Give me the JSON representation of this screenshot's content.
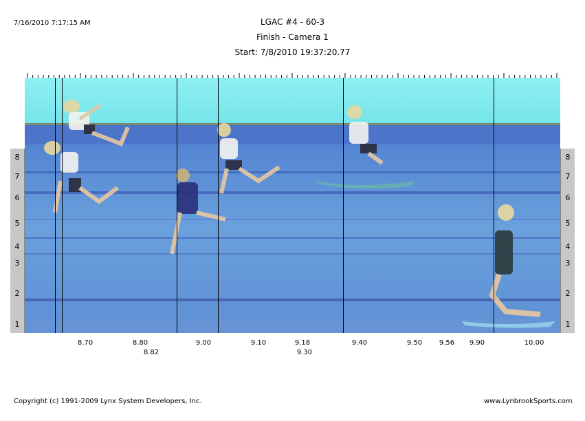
{
  "header": {
    "timestamp": "7/16/2010 7:17:15 AM",
    "title": "LGAC #4 - 60-3",
    "subtitle": "Finish - Camera 1",
    "start": "Start: 7/8/2010 19:37:20.77"
  },
  "lanes": [
    "8",
    "7",
    "6",
    "5",
    "4",
    "3",
    "2",
    "1"
  ],
  "time_labels_row1": [
    "8.70",
    "8.80",
    "9.00",
    "9.10",
    "9.18",
    "9.40",
    "9.50",
    "9.56",
    "9.90",
    "10.00"
  ],
  "time_labels_row2": [
    "8.82",
    "9.30"
  ],
  "footer": {
    "copyright": "Copyright (c) 1991-2009 Lynx System Developers, Inc.",
    "website": "www.LynbrookSports.com"
  },
  "colors": {
    "sky": "#7fe8ec",
    "track": "#5f90d8",
    "track_dark": "#4a74c4",
    "lane_box": "#c7c7c7"
  }
}
